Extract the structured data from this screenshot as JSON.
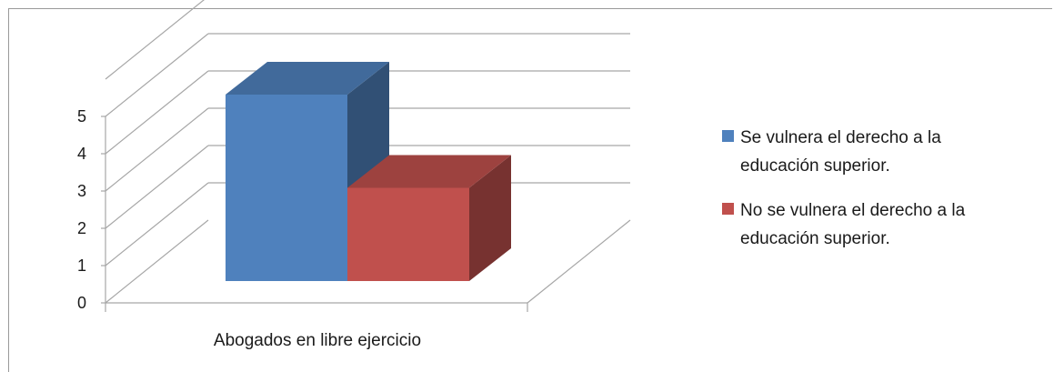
{
  "chart_data": {
    "type": "bar",
    "categories": [
      "Abogados en libre ejercicio"
    ],
    "series": [
      {
        "name": "Se vulnera el derecho a la educación superior.",
        "name_lines": [
          "Se vulnera el derecho a la",
          "educación superior."
        ],
        "values": [
          5
        ],
        "color": "#4F81BD"
      },
      {
        "name": "No se vulnera el derecho a la educación superior.",
        "name_lines": [
          "No se vulnera el derecho a la",
          "educación superior."
        ],
        "values": [
          2.5
        ],
        "color": "#C0504D"
      }
    ],
    "ylim": [
      0,
      5
    ],
    "yticks": [
      0,
      1,
      2,
      3,
      4,
      5
    ],
    "grid": true,
    "legend_position": "right",
    "style": "3d"
  }
}
